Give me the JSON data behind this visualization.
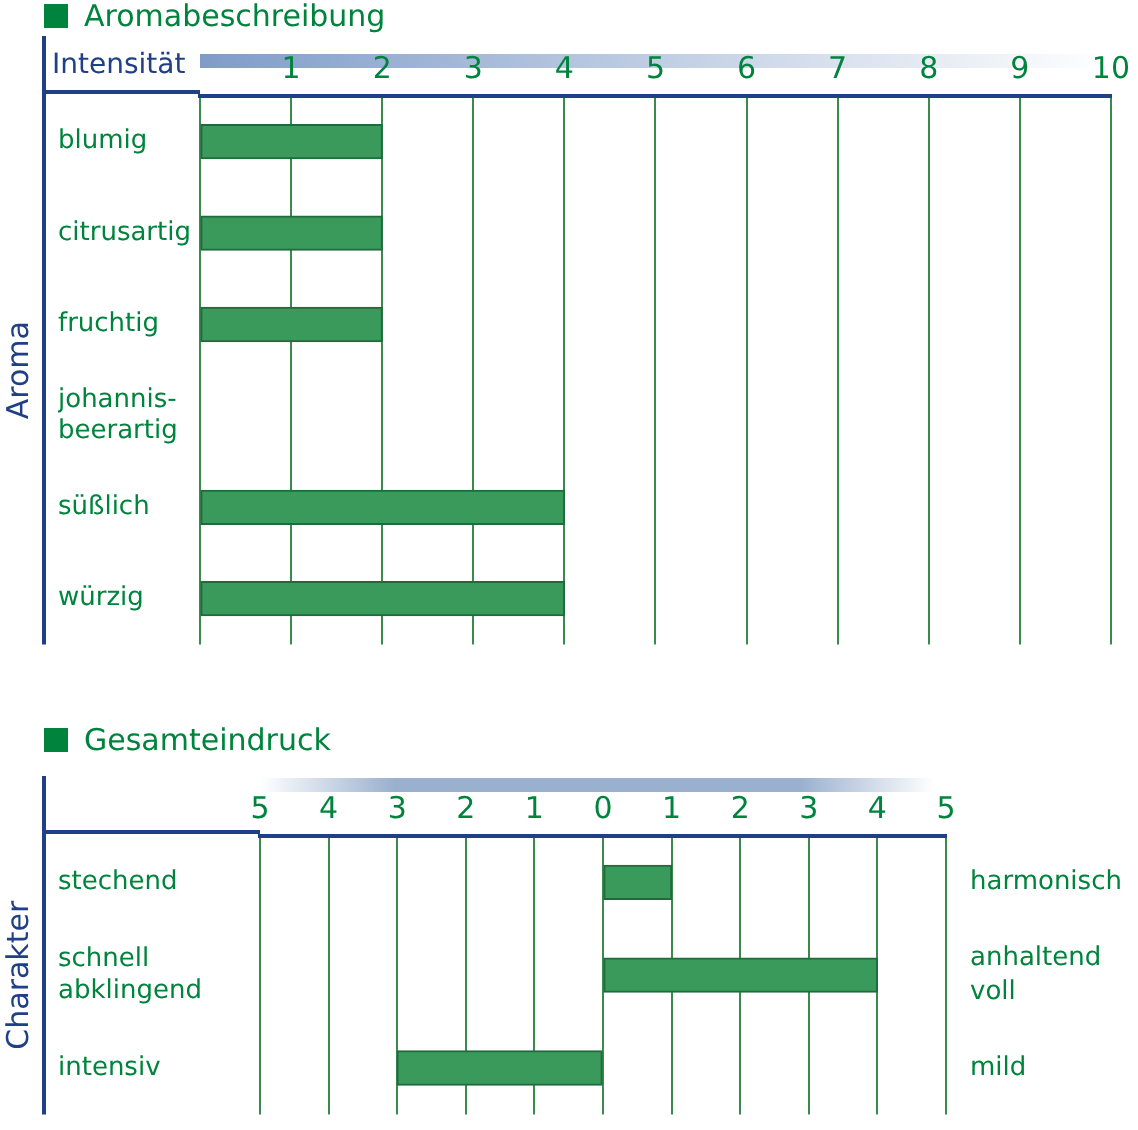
{
  "chart_data": [
    {
      "type": "bar",
      "orientation": "horizontal",
      "title": "Aromabeschreibung",
      "xlabel": "Intensität",
      "ylabel": "Aroma",
      "categories": [
        "blumig",
        "citrusartig",
        "fruchtig",
        "johannis-\nbeerartig",
        "süßlich",
        "würzig"
      ],
      "values": [
        2,
        2,
        2,
        0,
        4,
        4
      ],
      "color": "#3a9a5c",
      "xlim": [
        0,
        10
      ],
      "xticks": [
        {
          "value": 0,
          "label": null
        },
        1,
        2,
        3,
        4,
        5,
        6,
        7,
        8,
        9,
        10
      ],
      "grid": "x",
      "legend": false
    },
    {
      "type": "bar",
      "orientation": "horizontal",
      "title": "Gesamteindruck",
      "ylabel": "Charakter",
      "categories": [
        "stechend",
        "schnell\nabklingend",
        "intensiv"
      ],
      "values": [
        1,
        4,
        -3
      ],
      "color": "#3a9a5c",
      "annotations": [
        "harmonisch",
        "anhaltend\nvoll",
        "mild"
      ],
      "xlim": [
        -5,
        5
      ],
      "xticks": [
        {
          "value": -5,
          "label": "5"
        },
        {
          "value": -4,
          "label": "4"
        },
        {
          "value": -3,
          "label": "3"
        },
        {
          "value": -2,
          "label": "2"
        },
        {
          "value": -1,
          "label": "1"
        },
        0,
        1,
        2,
        3,
        4,
        5
      ],
      "grid": "x",
      "legend": false
    }
  ]
}
